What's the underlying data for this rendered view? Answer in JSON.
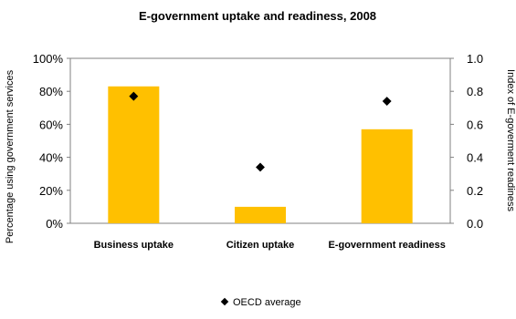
{
  "chart_data": {
    "type": "bar",
    "title": "E-government uptake and readiness, 2008",
    "categories": [
      "Business uptake",
      "Citizen uptake",
      "E-government readiness"
    ],
    "series": [
      {
        "name": "",
        "axis": "left",
        "values": [
          83,
          10,
          57
        ],
        "color": "#FFC000"
      },
      {
        "name": "OECD average",
        "axis": "right",
        "marker": "diamond",
        "values": [
          0.77,
          0.34,
          0.74
        ],
        "color": "#000000"
      }
    ],
    "ylabel": "Percentage using government services",
    "y2label": "Index of E-goverment readiness",
    "ylim": [
      0,
      100
    ],
    "y2lim": [
      0,
      1.0
    ],
    "yticks": [
      "0%",
      "20%",
      "40%",
      "60%",
      "80%",
      "100%"
    ],
    "y2ticks": [
      "0.0",
      "0.2",
      "0.4",
      "0.6",
      "0.8",
      "1.0"
    ],
    "grid": false,
    "legend": "bottom"
  }
}
